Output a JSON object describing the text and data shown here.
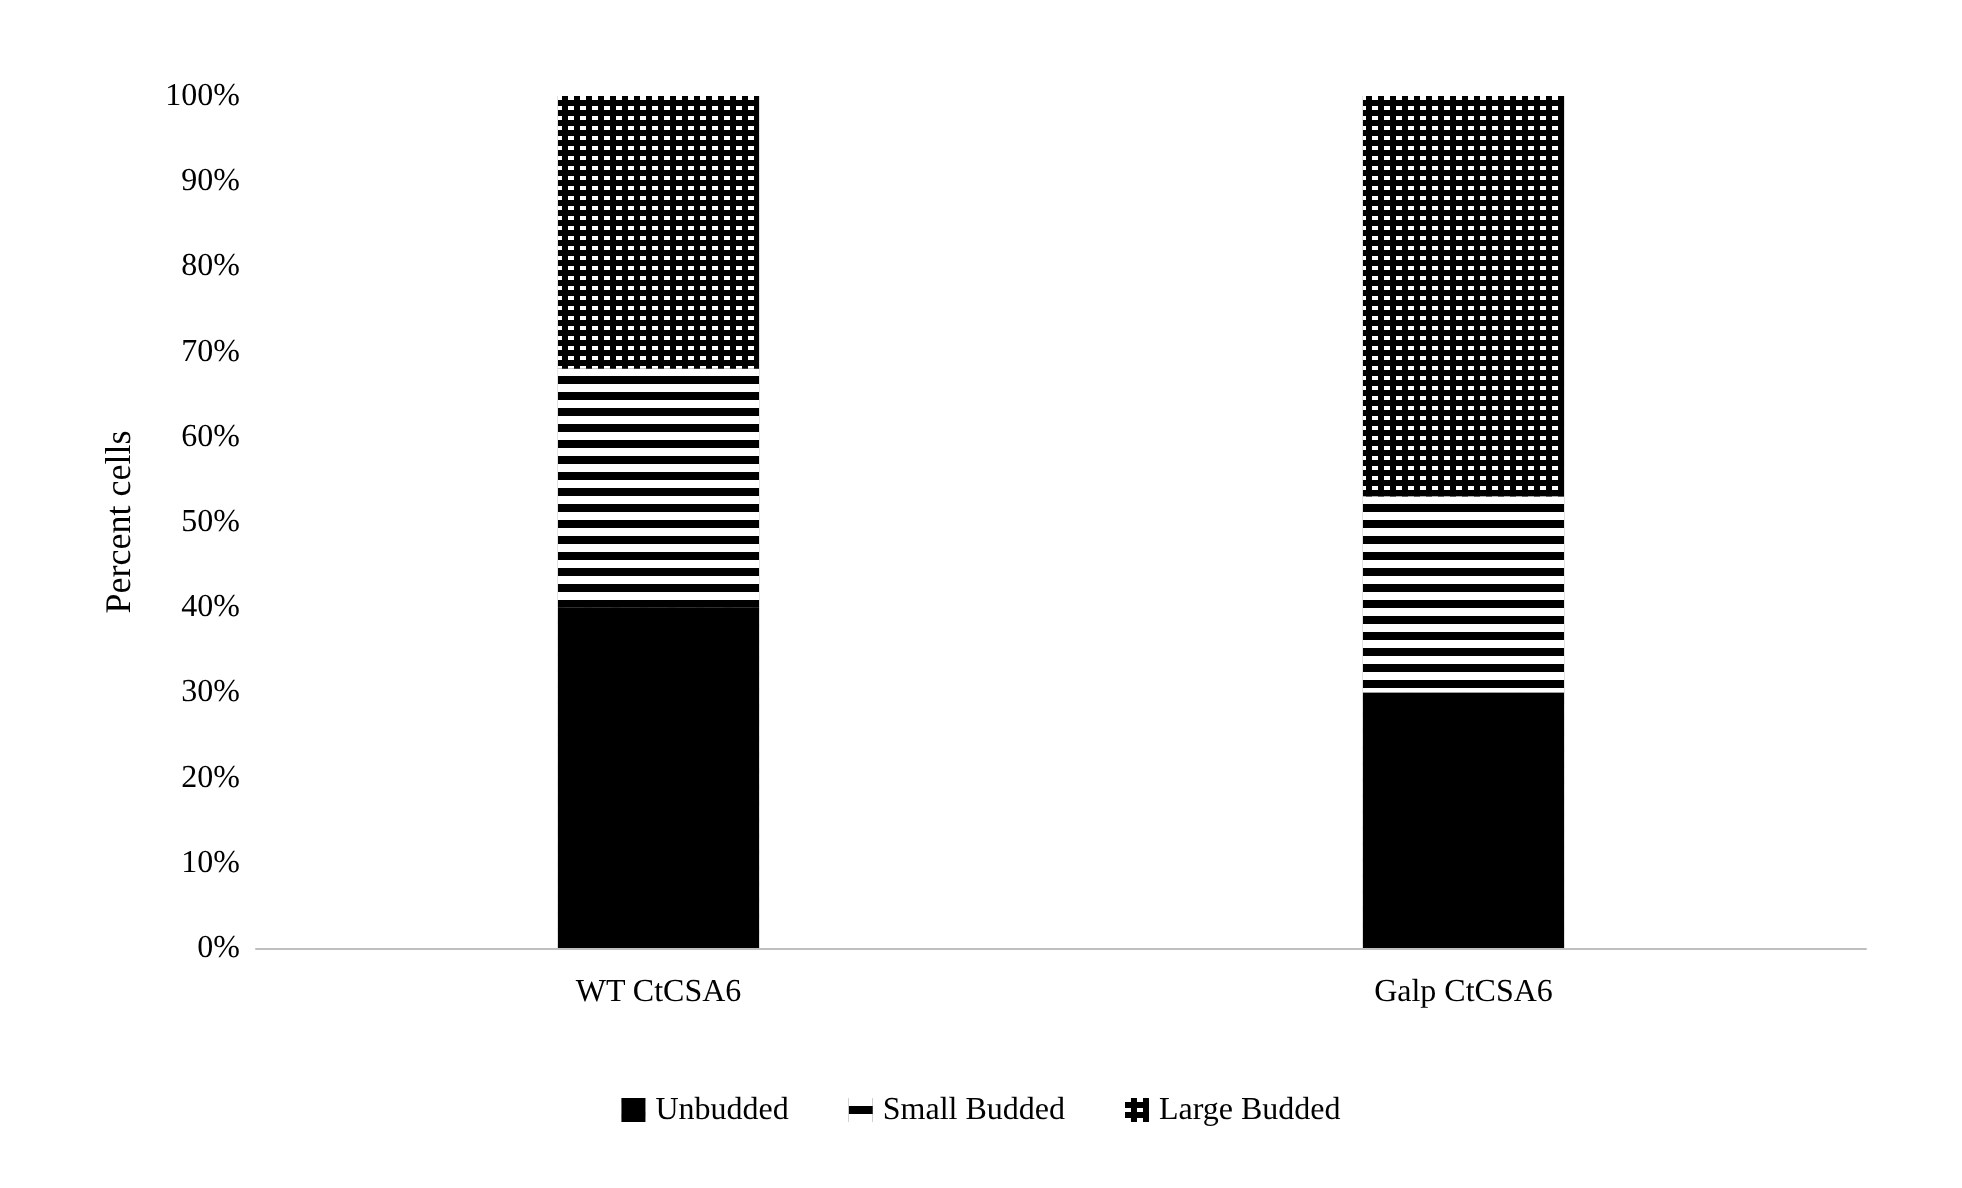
{
  "chart_data": {
    "type": "bar",
    "stacked": true,
    "ylabel": "Percent cells",
    "categories": [
      "WT CtCSA6",
      "Galp CtCSA6"
    ],
    "series": [
      {
        "name": "Unbudded",
        "color": "#000000",
        "values": [
          40,
          30
        ]
      },
      {
        "name": "Small Budded",
        "color": "#000000",
        "values": [
          28,
          23
        ]
      },
      {
        "name": "Large Budded",
        "color": "#000000",
        "values": [
          32,
          47
        ]
      }
    ],
    "ylim": [
      0,
      100
    ],
    "yticks": [
      {
        "value": 0,
        "label": "0%"
      },
      {
        "value": 10,
        "label": "10%"
      },
      {
        "value": 20,
        "label": "20%"
      },
      {
        "value": 30,
        "label": "30%"
      },
      {
        "value": 40,
        "label": "40%"
      },
      {
        "value": 50,
        "label": "50%"
      },
      {
        "value": 60,
        "label": "60%"
      },
      {
        "value": 70,
        "label": "70%"
      },
      {
        "value": 80,
        "label": "80%"
      },
      {
        "value": 90,
        "label": "90%"
      },
      {
        "value": 100,
        "label": "100%"
      }
    ],
    "grid": false,
    "legend": "bottom"
  }
}
